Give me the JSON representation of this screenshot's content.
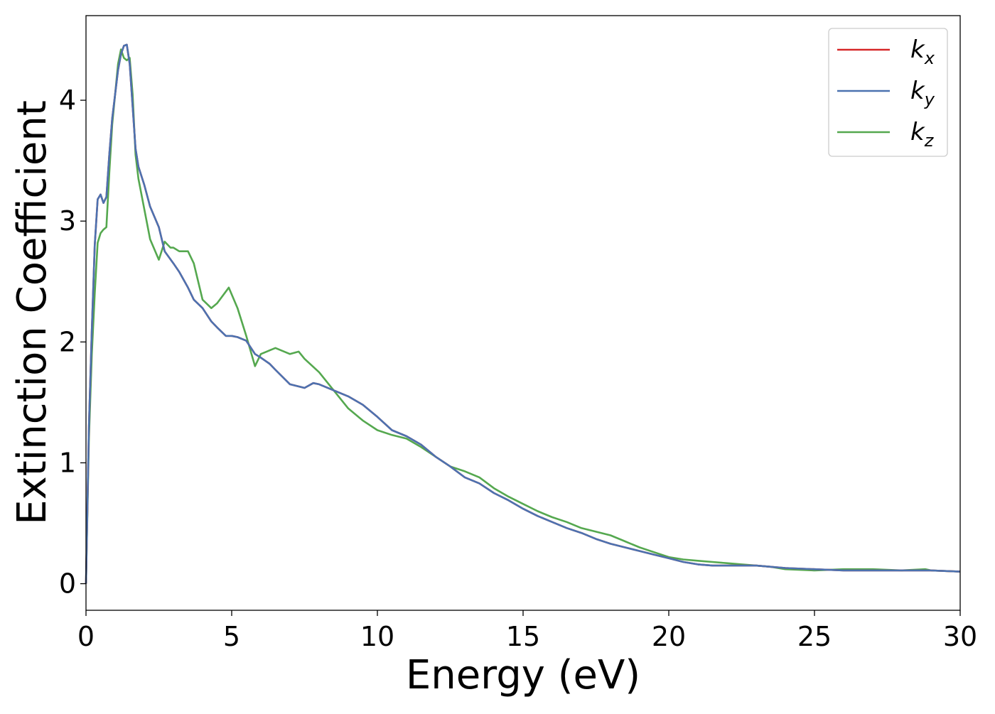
{
  "chart_data": {
    "type": "line",
    "title": "",
    "xlabel": "Energy (eV)",
    "ylabel": "Extinction Coefficient",
    "xlim": [
      0,
      30
    ],
    "ylim": [
      -0.22,
      4.7
    ],
    "xticks": [
      0,
      5,
      10,
      15,
      20,
      25,
      30
    ],
    "xtick_labels": [
      "0",
      "5",
      "10",
      "15",
      "20",
      "25",
      "30"
    ],
    "yticks": [
      0,
      1,
      2,
      3,
      4
    ],
    "ytick_labels": [
      "0",
      "1",
      "2",
      "3",
      "4"
    ],
    "grid": false,
    "legend_position": "top-right",
    "series": [
      {
        "name": "k",
        "subscript": "x",
        "color": "#d62728",
        "x": [
          0,
          0.1,
          0.2,
          0.3,
          0.4,
          0.5,
          0.6,
          0.7,
          0.8,
          0.9,
          1.0,
          1.1,
          1.2,
          1.3,
          1.4,
          1.5,
          1.6,
          1.7,
          1.8,
          2.0,
          2.2,
          2.5,
          2.7,
          3.0,
          3.2,
          3.5,
          3.7,
          4.0,
          4.3,
          4.5,
          4.8,
          5.0,
          5.2,
          5.5,
          5.8,
          6.0,
          6.3,
          6.5,
          7.0,
          7.5,
          7.8,
          8.0,
          8.5,
          9.0,
          9.5,
          10.0,
          10.5,
          11.0,
          11.5,
          12.0,
          12.5,
          13.0,
          13.5,
          14.0,
          14.5,
          15.0,
          15.5,
          16.0,
          16.5,
          17.0,
          17.5,
          18.0,
          18.5,
          19.0,
          19.5,
          20.0,
          20.5,
          21.0,
          21.5,
          22.0,
          22.5,
          23.0,
          23.5,
          24.0,
          25.0,
          26.0,
          27.0,
          28.0,
          29.0,
          30.0
        ],
        "values": [
          0,
          1.3,
          2.1,
          2.8,
          3.18,
          3.22,
          3.15,
          3.2,
          3.55,
          3.85,
          4.05,
          4.25,
          4.38,
          4.45,
          4.46,
          4.3,
          3.95,
          3.6,
          3.45,
          3.3,
          3.12,
          2.95,
          2.75,
          2.65,
          2.58,
          2.45,
          2.35,
          2.28,
          2.17,
          2.12,
          2.05,
          2.05,
          2.04,
          2.01,
          1.9,
          1.87,
          1.82,
          1.77,
          1.65,
          1.62,
          1.66,
          1.65,
          1.6,
          1.55,
          1.48,
          1.38,
          1.27,
          1.22,
          1.15,
          1.05,
          0.97,
          0.88,
          0.83,
          0.75,
          0.69,
          0.62,
          0.56,
          0.51,
          0.46,
          0.42,
          0.37,
          0.33,
          0.3,
          0.27,
          0.24,
          0.21,
          0.18,
          0.16,
          0.15,
          0.15,
          0.15,
          0.15,
          0.14,
          0.13,
          0.12,
          0.11,
          0.11,
          0.11,
          0.11,
          0.1
        ]
      },
      {
        "name": "k",
        "subscript": "y",
        "color": "#4c72b0",
        "x": [
          0,
          0.1,
          0.2,
          0.3,
          0.4,
          0.5,
          0.6,
          0.7,
          0.8,
          0.9,
          1.0,
          1.1,
          1.2,
          1.3,
          1.4,
          1.5,
          1.6,
          1.7,
          1.8,
          2.0,
          2.2,
          2.5,
          2.7,
          3.0,
          3.2,
          3.5,
          3.7,
          4.0,
          4.3,
          4.5,
          4.8,
          5.0,
          5.2,
          5.5,
          5.8,
          6.0,
          6.3,
          6.5,
          7.0,
          7.5,
          7.8,
          8.0,
          8.5,
          9.0,
          9.5,
          10.0,
          10.5,
          11.0,
          11.5,
          12.0,
          12.5,
          13.0,
          13.5,
          14.0,
          14.5,
          15.0,
          15.5,
          16.0,
          16.5,
          17.0,
          17.5,
          18.0,
          18.5,
          19.0,
          19.5,
          20.0,
          20.5,
          21.0,
          21.5,
          22.0,
          22.5,
          23.0,
          23.5,
          24.0,
          25.0,
          26.0,
          27.0,
          28.0,
          29.0,
          30.0
        ],
        "values": [
          0,
          1.3,
          2.1,
          2.8,
          3.18,
          3.22,
          3.15,
          3.2,
          3.55,
          3.85,
          4.05,
          4.25,
          4.38,
          4.45,
          4.46,
          4.3,
          3.95,
          3.6,
          3.45,
          3.3,
          3.12,
          2.95,
          2.75,
          2.65,
          2.58,
          2.45,
          2.35,
          2.28,
          2.17,
          2.12,
          2.05,
          2.05,
          2.04,
          2.01,
          1.9,
          1.87,
          1.82,
          1.77,
          1.65,
          1.62,
          1.66,
          1.65,
          1.6,
          1.55,
          1.48,
          1.38,
          1.27,
          1.22,
          1.15,
          1.05,
          0.97,
          0.88,
          0.83,
          0.75,
          0.69,
          0.62,
          0.56,
          0.51,
          0.46,
          0.42,
          0.37,
          0.33,
          0.3,
          0.27,
          0.24,
          0.21,
          0.18,
          0.16,
          0.15,
          0.15,
          0.15,
          0.15,
          0.14,
          0.13,
          0.12,
          0.11,
          0.11,
          0.11,
          0.11,
          0.1
        ]
      },
      {
        "name": "k",
        "subscript": "z",
        "color": "#55a84f",
        "x": [
          0,
          0.1,
          0.2,
          0.3,
          0.4,
          0.5,
          0.6,
          0.7,
          0.8,
          0.9,
          1.0,
          1.1,
          1.2,
          1.3,
          1.4,
          1.5,
          1.6,
          1.7,
          1.8,
          2.0,
          2.2,
          2.5,
          2.7,
          2.9,
          3.0,
          3.2,
          3.5,
          3.7,
          4.0,
          4.3,
          4.5,
          4.9,
          5.2,
          5.5,
          5.8,
          6.0,
          6.2,
          6.5,
          7.0,
          7.3,
          7.5,
          8.0,
          8.5,
          9.0,
          9.5,
          10.0,
          10.5,
          11.0,
          11.5,
          12.0,
          12.5,
          13.0,
          13.5,
          14.0,
          14.5,
          15.0,
          15.5,
          16.0,
          16.5,
          17.0,
          17.5,
          18.0,
          18.5,
          19.0,
          19.5,
          20.0,
          20.5,
          21.0,
          21.5,
          22.0,
          22.5,
          23.0,
          23.5,
          24.0,
          25.0,
          26.0,
          27.0,
          28.0,
          28.8,
          29.0,
          30.0
        ],
        "values": [
          0,
          1.2,
          1.9,
          2.4,
          2.82,
          2.9,
          2.93,
          2.95,
          3.4,
          3.8,
          4.05,
          4.3,
          4.42,
          4.35,
          4.33,
          4.35,
          4.05,
          3.55,
          3.35,
          3.1,
          2.85,
          2.68,
          2.83,
          2.78,
          2.78,
          2.75,
          2.75,
          2.65,
          2.35,
          2.28,
          2.32,
          2.45,
          2.28,
          2.05,
          1.8,
          1.9,
          1.92,
          1.95,
          1.9,
          1.92,
          1.86,
          1.75,
          1.6,
          1.45,
          1.35,
          1.27,
          1.23,
          1.2,
          1.13,
          1.05,
          0.97,
          0.93,
          0.88,
          0.79,
          0.72,
          0.66,
          0.6,
          0.55,
          0.51,
          0.46,
          0.43,
          0.4,
          0.35,
          0.3,
          0.26,
          0.22,
          0.2,
          0.19,
          0.18,
          0.17,
          0.16,
          0.15,
          0.14,
          0.12,
          0.11,
          0.12,
          0.12,
          0.11,
          0.12,
          0.11,
          0.1
        ]
      }
    ]
  }
}
